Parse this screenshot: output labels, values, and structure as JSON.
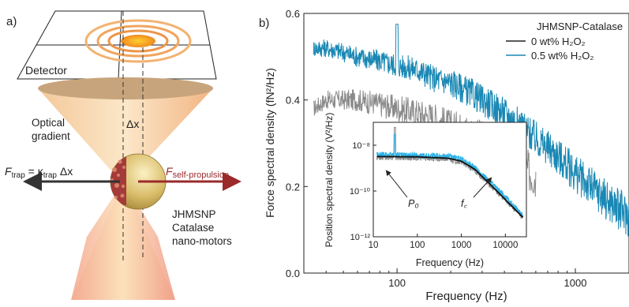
{
  "panel_a": {
    "label": "a)",
    "detector": "Detector",
    "delta_x": "Δx",
    "gradient_line1": "Optical",
    "gradient_line2": "gradient",
    "f_trap": "F",
    "f_trap_sub": "trap",
    "f_trap_eq": " = κ",
    "f_trap_eq_sub": "trap",
    "f_trap_eq_tail": " Δx",
    "f_prop": "F",
    "f_prop_sub": "self-propulsion",
    "motor_line1": "JHMSNP",
    "motor_line2": "Catalase",
    "motor_line3": "nano-motors",
    "colors": {
      "beam": "#f0b787",
      "trap_arrow": "#333333",
      "propulsion_arrow": "#9b2a2a",
      "spot": "#f0a030"
    }
  },
  "chart_data": [
    {
      "panel": "b)",
      "type": "line",
      "title": "",
      "xlabel": "Frequency (Hz)",
      "ylabel": "Force spectral density (fN²/Hz)",
      "xscale": "log",
      "xlim": [
        30,
        2000
      ],
      "ylim": [
        0.0,
        0.6
      ],
      "x_ticks": [
        100,
        1000
      ],
      "x_tick_labels": [
        "100",
        "1000"
      ],
      "y_ticks": [
        0.0,
        0.2,
        0.4,
        0.6
      ],
      "y_tick_labels": [
        "0.0",
        "0.2",
        "0.4",
        "0.6"
      ],
      "legend_title": "JHMSNP-Catalase",
      "legend_position": "top-right",
      "series": [
        {
          "name": "0 wt% H₂O₂",
          "color": "#8a8a8a",
          "x": [
            34,
            40,
            50,
            60,
            80,
            100,
            130,
            160,
            200,
            250,
            300,
            400,
            500,
            600
          ],
          "values": [
            0.38,
            0.4,
            0.4,
            0.4,
            0.39,
            0.38,
            0.37,
            0.36,
            0.34,
            0.33,
            0.31,
            0.28,
            0.25,
            0.22
          ]
        },
        {
          "name": "0.5 wt% H₂O₂",
          "color": "#1a88b4",
          "x": [
            34,
            40,
            50,
            60,
            80,
            100,
            130,
            160,
            200,
            250,
            300,
            400,
            500,
            600,
            800,
            1000,
            1300,
            1600,
            2000
          ],
          "values": [
            0.52,
            0.52,
            0.51,
            0.5,
            0.49,
            0.48,
            0.47,
            0.45,
            0.44,
            0.42,
            0.4,
            0.37,
            0.34,
            0.31,
            0.27,
            0.23,
            0.19,
            0.16,
            0.13
          ]
        }
      ]
    },
    {
      "panel": "b) inset",
      "type": "line",
      "title": "",
      "xlabel": "Frequency (Hz)",
      "ylabel": "Position spectral density (V²/Hz)",
      "xscale": "log",
      "yscale": "log",
      "xlim": [
        10,
        30000
      ],
      "ylim": [
        1e-12,
        1e-07
      ],
      "x_tick_labels": [
        "10",
        "100",
        "1000",
        "10000"
      ],
      "y_tick_labels": [
        "10⁻⁸",
        "10⁻¹⁰",
        "10⁻¹²"
      ],
      "annotations": [
        "P₀",
        "f꜀"
      ],
      "series": [
        {
          "name": "data_0",
          "color": "#8a8a8a",
          "x": [
            12,
            100,
            500,
            1000,
            2000,
            5000,
            10000,
            25000
          ],
          "values": [
            3e-09,
            2.8e-09,
            2.5e-09,
            1.8e-09,
            8e-10,
            1.5e-10,
            4e-11,
            7e-12
          ]
        },
        {
          "name": "data_05",
          "color": "#2ab2e8",
          "x": [
            12,
            100,
            500,
            1000,
            2000,
            5000,
            10000,
            25000
          ],
          "values": [
            4e-09,
            3.6e-09,
            3.3e-09,
            2.5e-09,
            1.1e-09,
            2e-10,
            5.5e-11,
            9e-12
          ]
        },
        {
          "name": "fit",
          "color": "#111111",
          "x": [
            12,
            100,
            500,
            1000,
            2000,
            5000,
            10000,
            25000
          ],
          "values": [
            3.2e-09,
            3.1e-09,
            2.7e-09,
            2e-09,
            9e-10,
            1.6e-10,
            4.2e-11,
            7e-12
          ]
        }
      ]
    }
  ]
}
